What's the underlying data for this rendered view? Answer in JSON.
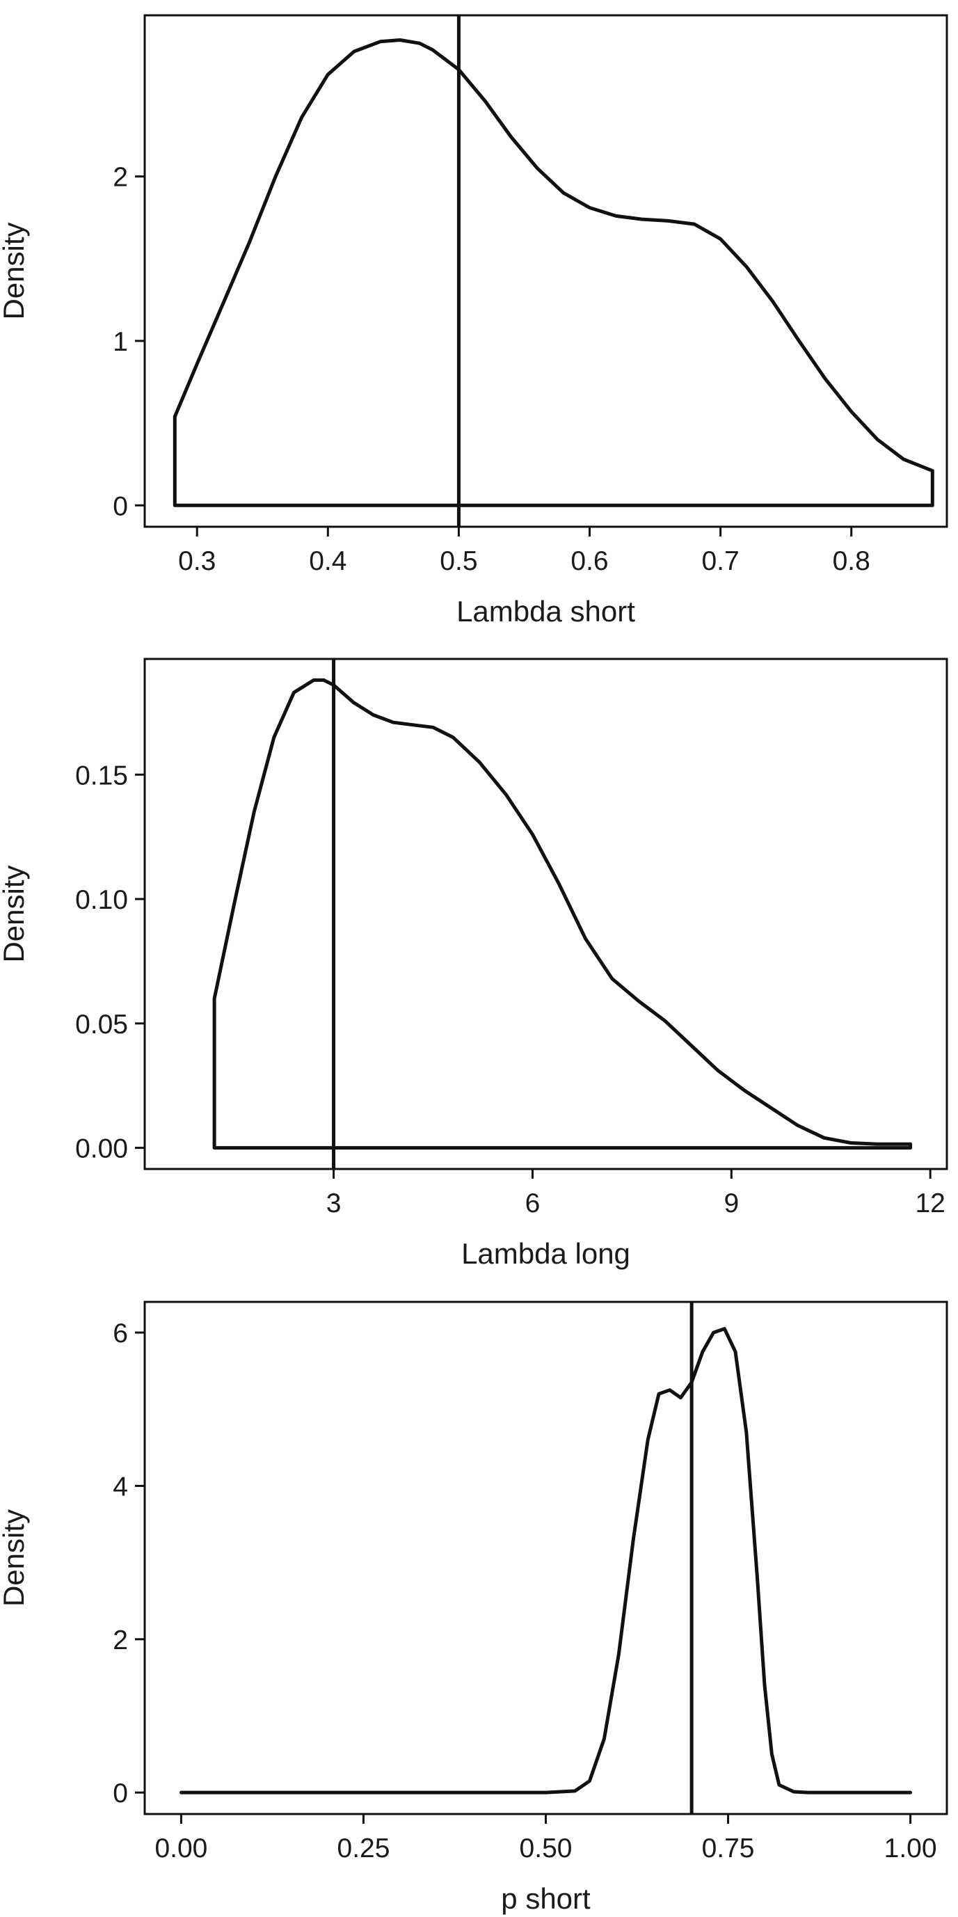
{
  "chart_data": [
    {
      "type": "line",
      "title": "",
      "xlabel": "Lambda short",
      "ylabel": "Density",
      "xlim": [
        0.26,
        0.873
      ],
      "ylim": [
        -0.13,
        2.98
      ],
      "xticks": [
        0.3,
        0.4,
        0.5,
        0.6,
        0.7,
        0.8
      ],
      "xtick_labels": [
        "0.3",
        "0.4",
        "0.5",
        "0.6",
        "0.7",
        "0.8"
      ],
      "yticks": [
        0,
        1,
        2
      ],
      "ytick_labels": [
        "0",
        "1",
        "2"
      ],
      "grid": false,
      "legend": "none",
      "vertical_line": 0.5,
      "series": [
        {
          "x": [
            0.283,
            0.283,
            0.3,
            0.32,
            0.34,
            0.36,
            0.38,
            0.4,
            0.42,
            0.44,
            0.455,
            0.47,
            0.48,
            0.5,
            0.52,
            0.54,
            0.56,
            0.58,
            0.6,
            0.62,
            0.64,
            0.66,
            0.68,
            0.7,
            0.72,
            0.74,
            0.76,
            0.78,
            0.8,
            0.82,
            0.84,
            0.862,
            0.862,
            0.283
          ],
          "y": [
            0.0,
            0.54,
            0.86,
            1.23,
            1.6,
            2.0,
            2.36,
            2.62,
            2.76,
            2.82,
            2.83,
            2.81,
            2.77,
            2.65,
            2.46,
            2.24,
            2.05,
            1.9,
            1.81,
            1.76,
            1.74,
            1.73,
            1.71,
            1.62,
            1.45,
            1.24,
            1.0,
            0.77,
            0.57,
            0.4,
            0.28,
            0.21,
            0.0,
            0.0
          ]
        }
      ]
    },
    {
      "type": "line",
      "title": "",
      "xlabel": "Lambda long",
      "ylabel": "Density",
      "xlim": [
        0.15,
        12.25
      ],
      "ylim": [
        -0.0085,
        0.1965
      ],
      "xticks": [
        3,
        6,
        9,
        12
      ],
      "xtick_labels": [
        "3",
        "6",
        "9",
        "12"
      ],
      "yticks": [
        0.0,
        0.05,
        0.1,
        0.15
      ],
      "ytick_labels": [
        "0.00",
        "0.05",
        "0.10",
        "0.15"
      ],
      "grid": false,
      "legend": "none",
      "vertical_line": 3,
      "series": [
        {
          "x": [
            1.2,
            1.2,
            1.5,
            1.8,
            2.1,
            2.4,
            2.7,
            2.85,
            3.0,
            3.3,
            3.6,
            3.9,
            4.2,
            4.5,
            4.8,
            5.2,
            5.6,
            6.0,
            6.4,
            6.8,
            7.2,
            7.6,
            8.0,
            8.4,
            8.8,
            9.2,
            9.6,
            10.0,
            10.4,
            10.8,
            11.2,
            11.7,
            11.7,
            1.2
          ],
          "y": [
            0.0,
            0.06,
            0.098,
            0.135,
            0.165,
            0.183,
            0.188,
            0.188,
            0.186,
            0.179,
            0.174,
            0.171,
            0.17,
            0.169,
            0.165,
            0.155,
            0.142,
            0.126,
            0.106,
            0.084,
            0.068,
            0.059,
            0.051,
            0.041,
            0.031,
            0.023,
            0.016,
            0.009,
            0.004,
            0.002,
            0.0015,
            0.0015,
            0.0,
            0.0
          ]
        }
      ]
    },
    {
      "type": "line",
      "title": "",
      "xlabel": "p short",
      "ylabel": "Density",
      "xlim": [
        -0.05,
        1.05
      ],
      "ylim": [
        -0.28,
        6.4
      ],
      "xticks": [
        0.0,
        0.25,
        0.5,
        0.75,
        1.0
      ],
      "xtick_labels": [
        "0.00",
        "0.25",
        "0.50",
        "0.75",
        "1.00"
      ],
      "yticks": [
        0,
        2,
        4,
        6
      ],
      "ytick_labels": [
        "0",
        "2",
        "4",
        "6"
      ],
      "grid": false,
      "legend": "none",
      "vertical_line": 0.7,
      "series": [
        {
          "x": [
            0.0,
            0.1,
            0.2,
            0.3,
            0.4,
            0.5,
            0.54,
            0.56,
            0.58,
            0.6,
            0.62,
            0.64,
            0.655,
            0.67,
            0.685,
            0.7,
            0.715,
            0.73,
            0.745,
            0.76,
            0.775,
            0.79,
            0.8,
            0.81,
            0.82,
            0.84,
            0.86,
            0.9,
            1.0
          ],
          "y": [
            0.0,
            0.0,
            0.0,
            0.0,
            0.0,
            0.0,
            0.02,
            0.15,
            0.7,
            1.8,
            3.3,
            4.6,
            5.2,
            5.25,
            5.15,
            5.35,
            5.75,
            6.0,
            6.05,
            5.75,
            4.7,
            2.8,
            1.4,
            0.5,
            0.1,
            0.01,
            0.0,
            0.0,
            0.0
          ]
        }
      ]
    }
  ]
}
